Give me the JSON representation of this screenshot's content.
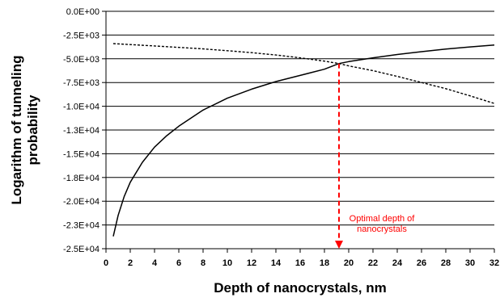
{
  "chart_data": {
    "type": "line",
    "xlabel": "Depth of nanocrystals, nm",
    "ylabel_lines": [
      "Logarithm of tunneling",
      "probability"
    ],
    "xlim": [
      0,
      32
    ],
    "ylim": [
      -25000,
      0
    ],
    "x_ticks": [
      "0",
      "2",
      "4",
      "6",
      "8",
      "10",
      "12",
      "14",
      "16",
      "18",
      "20",
      "22",
      "24",
      "26",
      "28",
      "30",
      "32"
    ],
    "y_ticks": [
      "0.0E+00",
      "-2.5E+03",
      "-5.0E+03",
      "-7.5E+03",
      "-1.0E+04",
      "-1.3E+04",
      "-1.5E+04",
      "-1.8E+04",
      "-2.0E+04",
      "-2.3E+04",
      "-2.5E+04"
    ],
    "grid": "horizontal",
    "series": [
      {
        "style": "solid",
        "color": "#000000",
        "x": [
          0.6,
          1,
          1.5,
          2,
          3,
          4,
          5,
          6,
          8,
          10,
          12,
          14,
          16,
          18,
          19.2,
          20,
          22,
          24,
          26,
          28,
          30,
          32
        ],
        "y": [
          -23700,
          -21500,
          -19500,
          -18000,
          -15900,
          -14300,
          -13100,
          -12100,
          -10400,
          -9150,
          -8200,
          -7400,
          -6750,
          -6100,
          -5500,
          -5300,
          -4900,
          -4550,
          -4250,
          -3970,
          -3750,
          -3550
        ]
      },
      {
        "style": "dotted",
        "color": "#000000",
        "x": [
          0.6,
          2,
          4,
          6,
          8,
          10,
          12,
          14,
          16,
          18,
          19.2,
          20,
          22,
          24,
          26,
          28,
          30,
          32
        ],
        "y": [
          -3400,
          -3500,
          -3650,
          -3800,
          -3950,
          -4150,
          -4350,
          -4600,
          -4900,
          -5250,
          -5500,
          -5750,
          -6250,
          -6850,
          -7500,
          -8150,
          -8900,
          -9700
        ]
      }
    ],
    "annotation": {
      "text_lines": [
        "Optimal depth of",
        "nanocrystals"
      ],
      "x": 19.2,
      "y_from": -5500,
      "y_to": -25000,
      "color": "#ff0000"
    }
  }
}
